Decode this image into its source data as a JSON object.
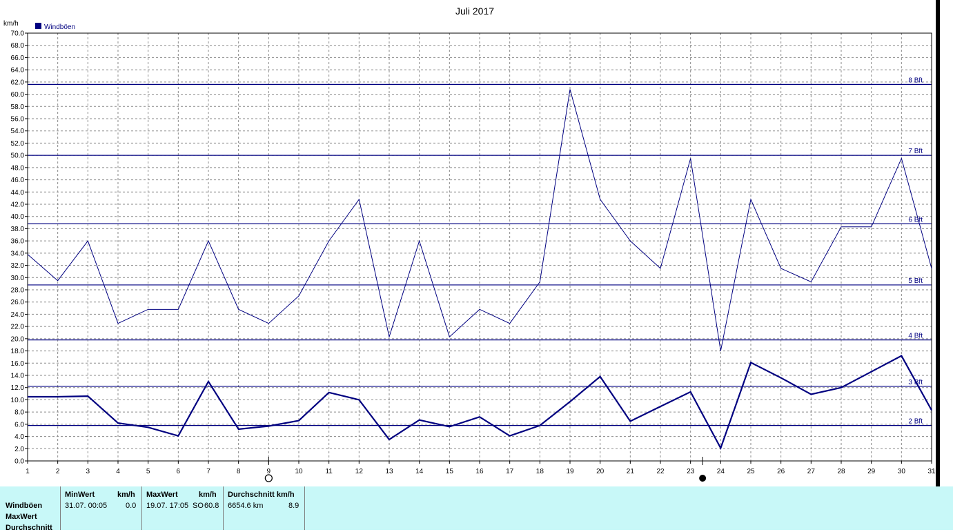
{
  "chart_data": {
    "type": "line",
    "title": "Juli 2017",
    "ylabel": "km/h",
    "xlabel": "",
    "ylim": [
      0,
      70
    ],
    "ytick_step": 2,
    "grid": true,
    "legend": {
      "position": "top-left",
      "entries": [
        "Windböen"
      ]
    },
    "categories": [
      "1",
      "2",
      "3",
      "4",
      "5",
      "6",
      "7",
      "8",
      "9",
      "10",
      "11",
      "12",
      "13",
      "14",
      "15",
      "16",
      "17",
      "18",
      "19",
      "20",
      "21",
      "22",
      "23",
      "24",
      "25",
      "26",
      "27",
      "28",
      "29",
      "30",
      "31"
    ],
    "series": [
      {
        "name": "MaxWert",
        "color": "#000080",
        "values": [
          33.8,
          29.5,
          36.0,
          22.5,
          24.8,
          24.8,
          36.0,
          24.8,
          22.5,
          27.0,
          36.0,
          42.8,
          20.3,
          36.0,
          20.3,
          24.8,
          22.5,
          29.3,
          60.8,
          42.8,
          36.0,
          31.5,
          49.5,
          18.0,
          42.8,
          31.5,
          29.3,
          38.3,
          38.3,
          49.5,
          31.5
        ]
      },
      {
        "name": "Durchschnitt",
        "color": "#000080",
        "values": [
          10.5,
          10.5,
          10.6,
          6.2,
          5.5,
          4.1,
          13.0,
          5.2,
          5.7,
          6.6,
          11.2,
          10.0,
          3.5,
          6.7,
          5.6,
          7.2,
          4.1,
          5.8,
          9.7,
          13.8,
          6.5,
          8.9,
          11.3,
          2.1,
          16.1,
          13.6,
          10.9,
          12.0,
          14.6,
          17.2,
          8.3
        ]
      }
    ],
    "beaufort_lines": [
      {
        "label": "2 Bft",
        "value": 5.8
      },
      {
        "label": "3 Bft",
        "value": 12.2
      },
      {
        "label": "4 Bft",
        "value": 19.8
      },
      {
        "label": "5 Bft",
        "value": 28.8
      },
      {
        "label": "6 Bft",
        "value": 38.8
      },
      {
        "label": "7 Bft",
        "value": 50.0
      },
      {
        "label": "8 Bft",
        "value": 61.6
      }
    ],
    "moon_phases": [
      {
        "day": 9,
        "phase": "full-moon"
      },
      {
        "day": 23.4,
        "phase": "new-moon"
      }
    ]
  },
  "stats": {
    "row_labels": [
      "Windböen",
      "MaxWert",
      "Durchschnitt"
    ],
    "min": {
      "header": "MinWert",
      "unit": "km/h",
      "date": "31.07.  00:05",
      "value": "0.0"
    },
    "max": {
      "header": "MaxWert",
      "unit": "km/h",
      "date": "19.07.  17:05",
      "direction": "SO",
      "value": "60.8"
    },
    "avg": {
      "header": "Durchschnitt km/h",
      "distance": "6654.6 km",
      "value": "8.9"
    }
  }
}
